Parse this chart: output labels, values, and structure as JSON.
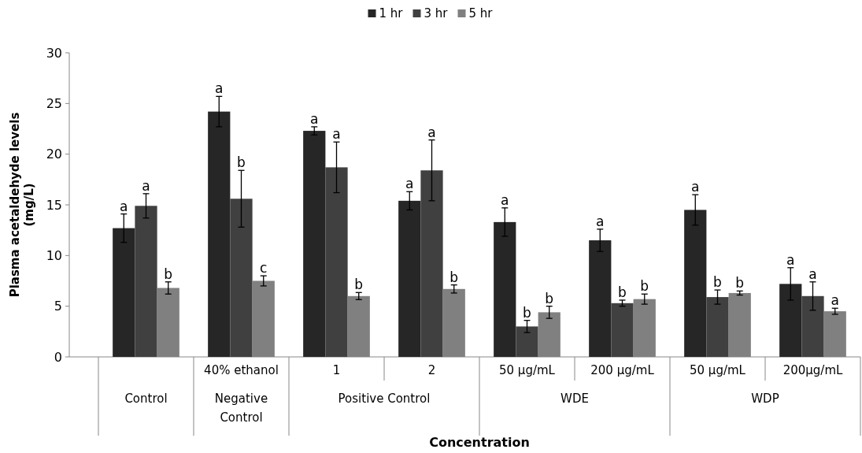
{
  "chart_data": {
    "type": "bar",
    "xlabel": "Concentration",
    "ylabel": "Plasma acetaldehyde levels (mg/L)",
    "categories": [
      null,
      "40% ethanol",
      "1",
      "2",
      "50 µg/mL",
      "200 µg/mL",
      "50 µg/mL",
      "200µg/mL"
    ],
    "series": [
      {
        "name": "1 hr",
        "color": "#262626",
        "values": [
          12.7,
          24.2,
          22.3,
          15.4,
          13.3,
          11.5,
          14.5,
          7.2
        ],
        "errors": [
          1.4,
          1.5,
          0.4,
          0.9,
          1.4,
          1.1,
          1.5,
          1.6
        ]
      },
      {
        "name": "3 hr",
        "color": "#404040",
        "values": [
          14.9,
          15.6,
          18.7,
          18.4,
          3.0,
          5.3,
          5.9,
          6.0
        ],
        "errors": [
          1.2,
          2.8,
          2.5,
          3.0,
          0.6,
          0.3,
          0.7,
          1.4
        ]
      },
      {
        "name": "5 hr",
        "color": "#808080",
        "values": [
          6.8,
          7.5,
          6.0,
          6.7,
          4.4,
          5.7,
          6.3,
          4.5
        ],
        "errors": [
          0.6,
          0.5,
          0.35,
          0.4,
          0.6,
          0.5,
          0.2,
          0.3
        ]
      }
    ],
    "ylim": [
      0,
      30
    ],
    "yticks": [
      0,
      5,
      10,
      15,
      20,
      25,
      30
    ],
    "grid": false,
    "legend": "top",
    "annotations": [
      "a",
      "a",
      "b",
      "a",
      "b",
      "c",
      "a",
      "a",
      "b",
      "a",
      "a",
      "b",
      "a",
      "b",
      "b",
      "a",
      "b",
      "b",
      "a",
      "b",
      "b",
      "a",
      "a",
      "a",
      "Control",
      "Negative Control",
      "Positive Control",
      "WDE",
      "WDP"
    ]
  }
}
